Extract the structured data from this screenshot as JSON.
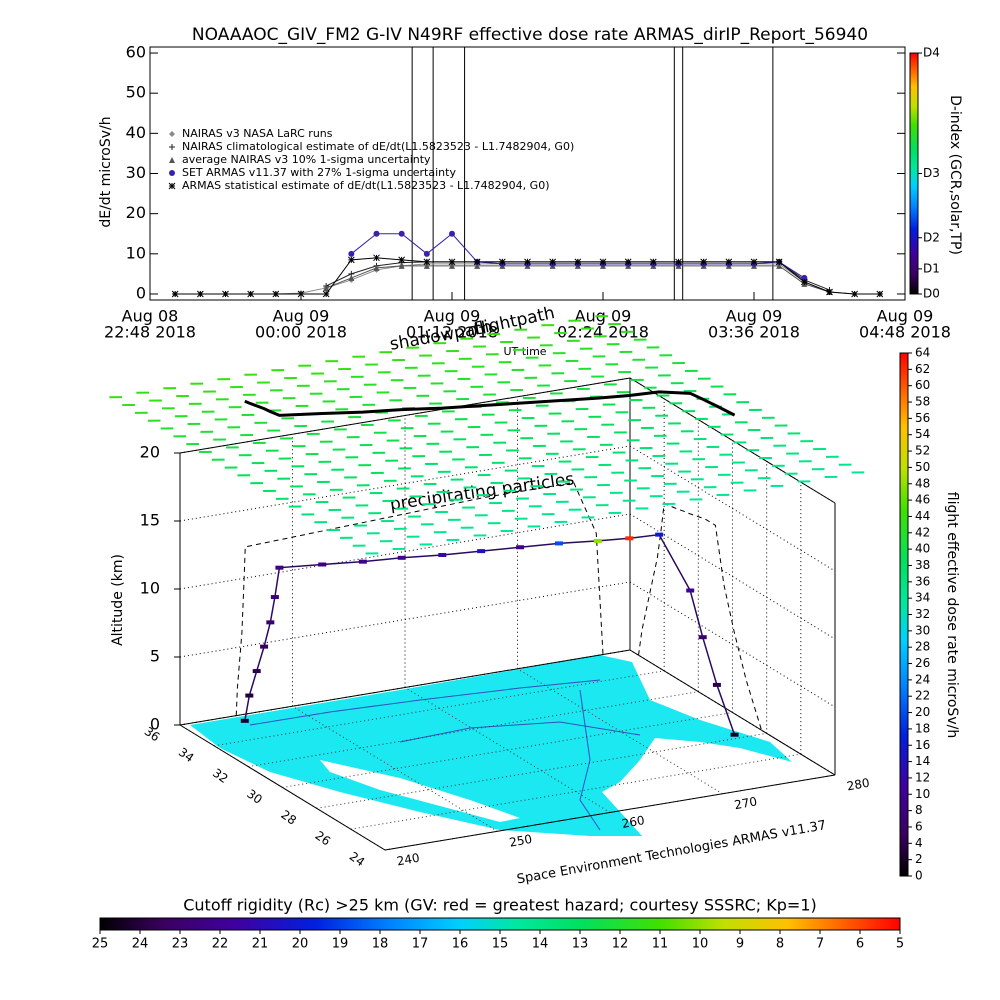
{
  "chart_data": [
    {
      "type": "line",
      "title": "NOAAAOC_GIV_FM2 G-IV    N49RF   effective dose rate ARMAS_dirIP_Report_56940",
      "y_label": "dE/dt microSv/h",
      "x_label": "UT time",
      "xlim": [
        "2018-08-08T22:48",
        "2018-08-09T04:48"
      ],
      "xticks": [
        {
          "value": "2018-08-08T22:48",
          "label": [
            "Aug 08",
            "22:48 2018"
          ]
        },
        {
          "value": "2018-08-09T00:00",
          "label": [
            "Aug 09",
            "00:00 2018"
          ]
        },
        {
          "value": "2018-08-09T01:12",
          "label": [
            "Aug 09",
            "01:12 2018"
          ]
        },
        {
          "value": "2018-08-09T02:24",
          "label": [
            "Aug 09",
            "02:24 2018"
          ]
        },
        {
          "value": "2018-08-09T03:36",
          "label": [
            "Aug 09",
            "03:36 2018"
          ]
        },
        {
          "value": "2018-08-09T04:48",
          "label": [
            "Aug 09",
            "04:48 2018"
          ]
        }
      ],
      "ylim": [
        -1.5,
        61.5
      ],
      "yticks": [
        0,
        10,
        20,
        30,
        40,
        50,
        60
      ],
      "legend": "upper left",
      "x": [
        "2018-08-08T22:48",
        "2018-08-08T23:00",
        "2018-08-08T23:12",
        "2018-08-08T23:24",
        "2018-08-08T23:36",
        "2018-08-08T23:48",
        "2018-08-09T00:00",
        "2018-08-09T00:12",
        "2018-08-09T00:24",
        "2018-08-09T00:36",
        "2018-08-09T00:48",
        "2018-08-09T01:00",
        "2018-08-09T01:12",
        "2018-08-09T01:24",
        "2018-08-09T01:36",
        "2018-08-09T01:48",
        "2018-08-09T02:00",
        "2018-08-09T02:12",
        "2018-08-09T02:24",
        "2018-08-09T02:36",
        "2018-08-09T02:48",
        "2018-08-09T03:00",
        "2018-08-09T03:12",
        "2018-08-09T03:24",
        "2018-08-09T03:36",
        "2018-08-09T03:48",
        "2018-08-09T04:00",
        "2018-08-09T04:12",
        "2018-08-09T04:24",
        "2018-08-09T04:36",
        "2018-08-09T04:48"
      ],
      "series": [
        {
          "name": "NAIRAS v3 NASA LaRC runs",
          "marker": "diamond",
          "color": "#8a8a8a",
          "values": [
            null,
            0,
            0,
            0,
            0,
            0,
            0.2,
            1.5,
            3.5,
            6,
            7,
            7.5,
            7.5,
            7.5,
            7.5,
            7.5,
            7.5,
            7.5,
            7.5,
            7.5,
            7.5,
            7.5,
            7.5,
            7.5,
            7.5,
            7.5,
            3,
            0.5,
            0,
            0,
            null
          ]
        },
        {
          "name": "NAIRAS climatological estimate of dE/dt(L1.5823523 - L1.7482904, G0)",
          "marker": "plus",
          "color": "#222222",
          "values": [
            null,
            null,
            null,
            null,
            null,
            null,
            null,
            2,
            5,
            7,
            7.8,
            8,
            8,
            8,
            8,
            8,
            8,
            8,
            8,
            8,
            8,
            8,
            8,
            8,
            8,
            8,
            3.5,
            1,
            null,
            null,
            null
          ]
        },
        {
          "name": "average NAIRAS v3 10% 1-sigma uncertainty",
          "marker": "triangle",
          "color": "#555555",
          "values": [
            null,
            null,
            null,
            null,
            null,
            null,
            null,
            1.5,
            4,
            6.5,
            7,
            7,
            7,
            7,
            7,
            7,
            7,
            7,
            7,
            7,
            7,
            7,
            7,
            7,
            7,
            7,
            2.5,
            0.5,
            null,
            null,
            null
          ]
        },
        {
          "name": "SET ARMAS v11.37 with 27% 1-sigma uncertainty",
          "marker": "circle",
          "color": "#3a1fb0",
          "values": [
            null,
            null,
            null,
            null,
            null,
            null,
            null,
            null,
            10,
            15,
            15,
            10,
            15,
            8,
            7.5,
            7.5,
            7.5,
            7.5,
            7.5,
            7.5,
            7.5,
            7.5,
            7.5,
            7.5,
            7.5,
            8,
            4,
            null,
            null,
            null,
            null
          ]
        },
        {
          "name": "ARMAS statistical estimate of dE/dt(L1.5823523 - L1.7482904, G0)",
          "marker": "asterisk",
          "color": "#000000",
          "values": [
            null,
            0,
            0,
            0,
            0,
            0,
            0,
            0,
            8.5,
            9,
            8.5,
            8,
            8,
            8,
            8,
            8,
            8,
            8,
            8,
            8,
            8,
            8,
            8,
            8,
            8,
            8,
            3,
            0.5,
            0,
            0,
            null
          ]
        }
      ],
      "spikes": [
        "2018-08-09T00:53",
        "2018-08-09T01:03",
        "2018-08-09T01:18",
        "2018-08-09T02:58",
        "2018-08-09T03:02",
        "2018-08-09T03:45"
      ],
      "dindex": {
        "label": "D-index (GCR,solar,TP)",
        "ticks": [
          {
            "value": 0,
            "label": "D0"
          },
          {
            "value": 6.25,
            "label": "D1"
          },
          {
            "value": 14,
            "label": "D2"
          },
          {
            "value": 30,
            "label": "D3"
          },
          {
            "value": 60,
            "label": "D4"
          }
        ]
      }
    },
    {
      "type": "scatter3d",
      "z_label": "Altitude (km)",
      "annotations": [
        "shadowpath",
        "flightpath",
        "precipitating particles",
        "Space Environment Technologies ARMAS v11.37"
      ],
      "latlim": [
        24,
        36
      ],
      "latticks": [
        24,
        26,
        28,
        30,
        32,
        34,
        36
      ],
      "lonlim": [
        240,
        280
      ],
      "lonticks": [
        240,
        250,
        260,
        270,
        280
      ],
      "zlim": [
        0,
        20
      ],
      "zticks": [
        0,
        5,
        10,
        15,
        20
      ],
      "flight": {
        "lat": [
          35.5,
          35.3,
          35.0,
          34.7,
          34.4,
          34.2,
          34.0,
          33.6,
          33.2,
          32.9,
          32.5,
          32.2,
          31.9,
          31.6,
          31.3,
          31.1,
          31.0,
          30.5,
          29.9,
          29.2,
          28.3
        ],
        "lon": [
          245.0,
          245.1,
          245.3,
          245.5,
          245.6,
          245.7,
          245.8,
          249,
          252,
          255,
          258,
          261,
          264,
          267,
          270,
          272.5,
          275,
          277,
          277.2,
          277.4,
          277.6
        ],
        "alt": [
          0,
          2,
          4,
          6,
          8,
          10,
          12.3,
          12.4,
          12.5,
          12.6,
          12.7,
          12.8,
          12.9,
          13,
          13,
          13,
          13,
          9,
          6,
          3,
          0
        ],
        "dose": [
          2,
          3,
          4,
          5,
          6,
          7,
          8,
          8,
          9,
          10,
          12,
          14,
          9,
          20,
          48,
          62,
          16,
          10,
          6,
          4,
          2
        ]
      },
      "colorbar": {
        "label": "flight effective dose rate microSv/h",
        "lim": [
          0,
          64
        ],
        "ticks": [
          0,
          2,
          4,
          6,
          8,
          10,
          12,
          14,
          16,
          18,
          20,
          22,
          24,
          26,
          28,
          30,
          32,
          34,
          36,
          38,
          40,
          42,
          44,
          46,
          48,
          50,
          52,
          54,
          56,
          58,
          60,
          62,
          64
        ]
      }
    },
    {
      "type": "colorbar",
      "title": "Cutoff rigidity (Rc) >25 km (GV: red = greatest hazard; courtesy SSSRC; Kp=1)",
      "xlim": [
        25,
        5
      ],
      "xticks": [
        25,
        24,
        23,
        22,
        21,
        20,
        19,
        18,
        17,
        16,
        15,
        14,
        13,
        12,
        11,
        10,
        9,
        8,
        7,
        6,
        5
      ]
    }
  ]
}
